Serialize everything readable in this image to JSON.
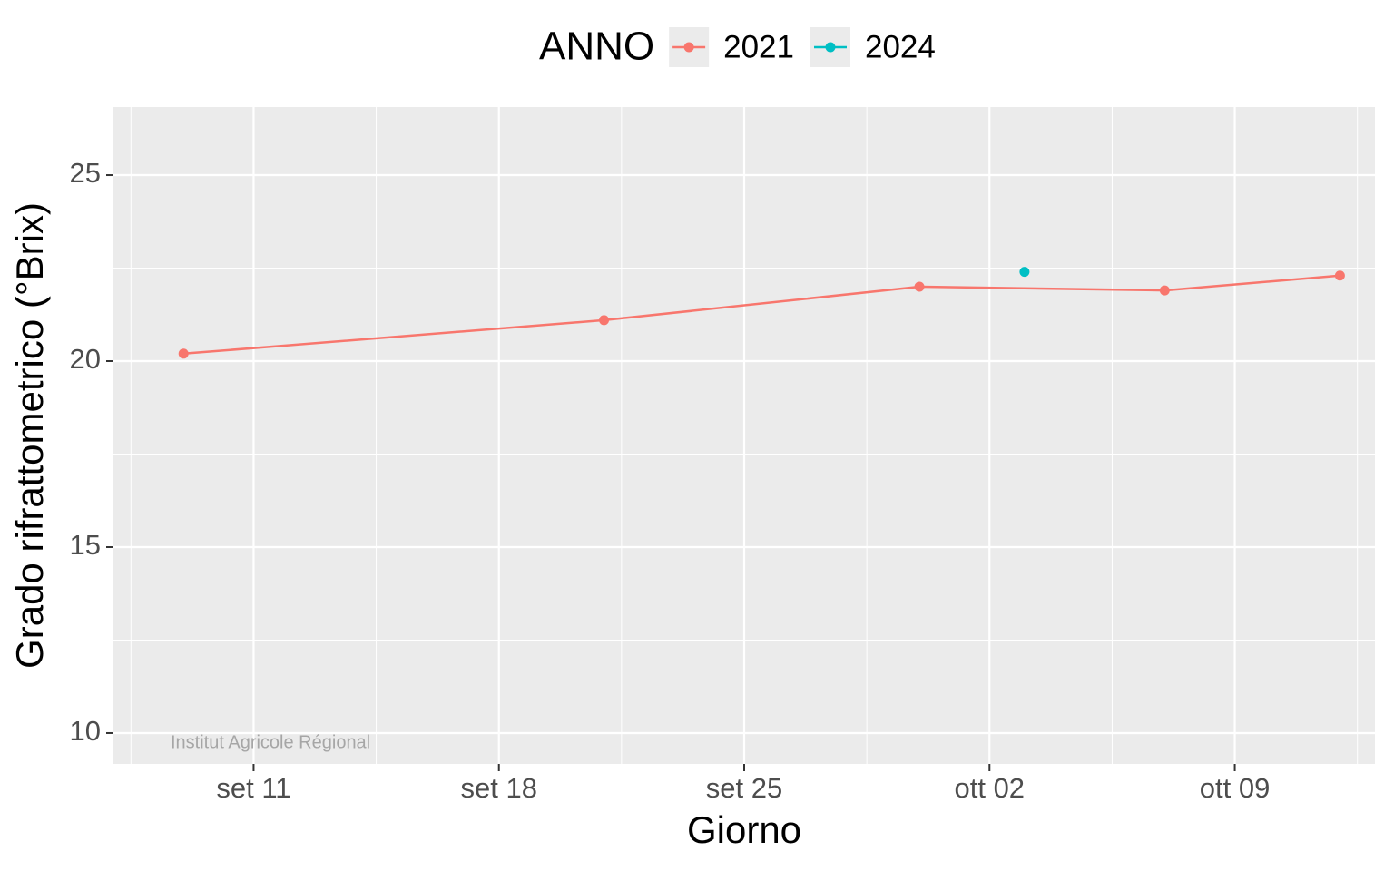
{
  "chart_data": {
    "type": "line",
    "xlabel": "Giorno",
    "ylabel": "Grado rifrattometrico (°Brix)",
    "legend_title": "ANNO",
    "legend": "top",
    "annotation": "Institut Agricole Régional",
    "series": [
      {
        "name": "2021",
        "color": "#f8766d",
        "x": [
          "09-09",
          "09-21",
          "09-30",
          "10-07",
          "10-12"
        ],
        "values": [
          20.2,
          21.1,
          22.0,
          21.9,
          22.3
        ]
      },
      {
        "name": "2024",
        "color": "#00bfc4",
        "x": [
          "10-03"
        ],
        "values": [
          22.4
        ]
      }
    ],
    "xlim": [
      "09-07",
      "10-13"
    ],
    "xticks": [
      {
        "value": "09-11",
        "label": "set 11"
      },
      {
        "value": "09-18",
        "label": "set 18"
      },
      {
        "value": "09-25",
        "label": "set 25"
      },
      {
        "value": "10-02",
        "label": "ott 02"
      },
      {
        "value": "10-09",
        "label": "ott 09"
      }
    ],
    "ylim": [
      9.17,
      26.83
    ],
    "yticks": [
      10,
      15,
      20,
      25
    ],
    "grid": true
  }
}
